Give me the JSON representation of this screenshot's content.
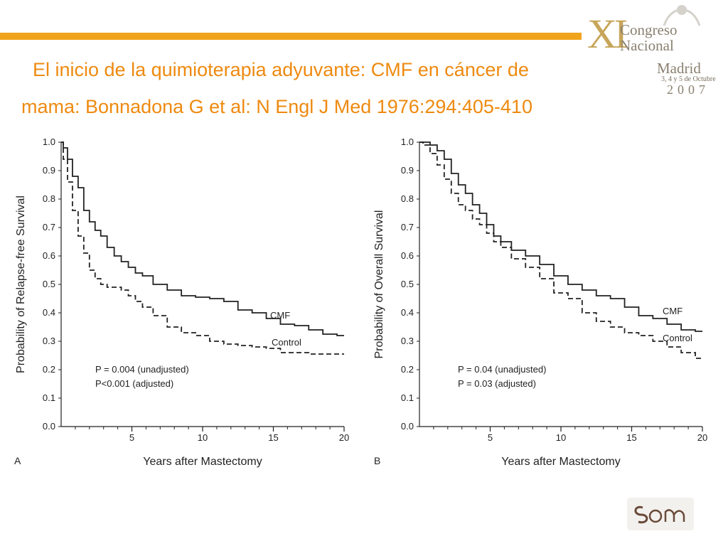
{
  "header": {
    "title_line1": "El inicio de la quimioterapia adyuvante: CMF en cáncer de",
    "title_line2": "mama: Bonnadona G et al: N Engl J Med 1976:294:405-410"
  },
  "badge": {
    "roman": "XI",
    "word1": "Congreso",
    "word2": "Nacional",
    "word3": "Madrid",
    "date": "3, 4 y 5 de Octubre",
    "year": "2007"
  },
  "colors": {
    "accent": "#f0a31c",
    "title": "#ee8a10"
  },
  "chart_data": [
    {
      "type": "line",
      "panel": "A",
      "ylabel": "Probability of Relapse-free Survival",
      "xlabel": "Years after Mastectomy",
      "xlim": [
        0,
        20
      ],
      "ylim": [
        0.0,
        1.0
      ],
      "x_ticks": [
        "5",
        "10",
        "15",
        "20"
      ],
      "y_ticks": [
        "0.0",
        "0.1",
        "0.2",
        "0.3",
        "0.4",
        "0.5",
        "0.6",
        "0.7",
        "0.8",
        "0.9",
        "1.0"
      ],
      "annotations": [
        "P = 0.004 (unadjusted)",
        "P<0.001 (adjusted)"
      ],
      "series": [
        {
          "name": "CMF",
          "style": "solid",
          "x": [
            0,
            0.3,
            0.6,
            1.0,
            1.4,
            1.8,
            2.2,
            2.6,
            3.0,
            3.5,
            4.0,
            4.5,
            5.0,
            5.5,
            6.0,
            7.0,
            8.0,
            9.0,
            10.0,
            11.0,
            12.0,
            13.0,
            14.0,
            15.0,
            16.0,
            17.0,
            18.0,
            19.0,
            20.0
          ],
          "y": [
            1.0,
            0.98,
            0.94,
            0.88,
            0.84,
            0.76,
            0.72,
            0.69,
            0.67,
            0.63,
            0.6,
            0.58,
            0.56,
            0.54,
            0.53,
            0.5,
            0.48,
            0.46,
            0.455,
            0.45,
            0.44,
            0.41,
            0.4,
            0.38,
            0.36,
            0.355,
            0.34,
            0.325,
            0.32
          ]
        },
        {
          "name": "Control",
          "style": "dashed",
          "x": [
            0,
            0.3,
            0.6,
            1.0,
            1.4,
            1.8,
            2.2,
            2.6,
            3.0,
            3.5,
            4.0,
            4.5,
            5.0,
            5.5,
            6.0,
            7.0,
            8.0,
            9.0,
            10.0,
            11.0,
            12.0,
            13.0,
            14.0,
            15.0,
            16.0,
            17.0,
            18.0,
            19.0,
            20.0
          ],
          "y": [
            1.0,
            0.94,
            0.86,
            0.76,
            0.67,
            0.61,
            0.55,
            0.52,
            0.5,
            0.49,
            0.49,
            0.48,
            0.46,
            0.44,
            0.42,
            0.39,
            0.35,
            0.33,
            0.32,
            0.3,
            0.29,
            0.285,
            0.28,
            0.275,
            0.26,
            0.26,
            0.255,
            0.255,
            0.255
          ]
        }
      ]
    },
    {
      "type": "line",
      "panel": "B",
      "ylabel": "Probability of Overall Survival",
      "xlabel": "Years after Mastectomy",
      "xlim": [
        0,
        20
      ],
      "ylim": [
        0.0,
        1.0
      ],
      "x_ticks": [
        "5",
        "10",
        "15",
        "20"
      ],
      "y_ticks": [
        "0.0",
        "0.1",
        "0.2",
        "0.3",
        "0.4",
        "0.5",
        "0.6",
        "0.7",
        "0.8",
        "0.9",
        "1.0"
      ],
      "annotations": [
        "P = 0.04 (unadjusted)",
        "P = 0.03 (adjusted)"
      ],
      "series": [
        {
          "name": "CMF",
          "style": "solid",
          "x": [
            0,
            0.5,
            1.0,
            1.5,
            2.0,
            2.5,
            3.0,
            3.5,
            4.0,
            4.5,
            5.0,
            5.5,
            6.0,
            7.0,
            8.0,
            9.0,
            10.0,
            11.0,
            12.0,
            13.0,
            14.0,
            15.0,
            16.0,
            17.0,
            18.0,
            19.0,
            20.0
          ],
          "y": [
            1.0,
            1.0,
            0.99,
            0.97,
            0.94,
            0.89,
            0.85,
            0.82,
            0.78,
            0.75,
            0.71,
            0.67,
            0.65,
            0.62,
            0.6,
            0.57,
            0.53,
            0.5,
            0.48,
            0.46,
            0.45,
            0.42,
            0.39,
            0.38,
            0.36,
            0.34,
            0.335
          ]
        },
        {
          "name": "Control",
          "style": "dashed",
          "x": [
            0,
            0.5,
            1.0,
            1.5,
            2.0,
            2.5,
            3.0,
            3.5,
            4.0,
            4.5,
            5.0,
            5.5,
            6.0,
            7.0,
            8.0,
            9.0,
            10.0,
            11.0,
            12.0,
            13.0,
            14.0,
            15.0,
            16.0,
            17.0,
            18.0,
            19.0,
            20.0
          ],
          "y": [
            1.0,
            0.99,
            0.96,
            0.92,
            0.87,
            0.82,
            0.78,
            0.76,
            0.73,
            0.71,
            0.68,
            0.65,
            0.63,
            0.59,
            0.56,
            0.52,
            0.47,
            0.45,
            0.4,
            0.37,
            0.35,
            0.33,
            0.32,
            0.3,
            0.28,
            0.26,
            0.24
          ]
        }
      ]
    }
  ]
}
